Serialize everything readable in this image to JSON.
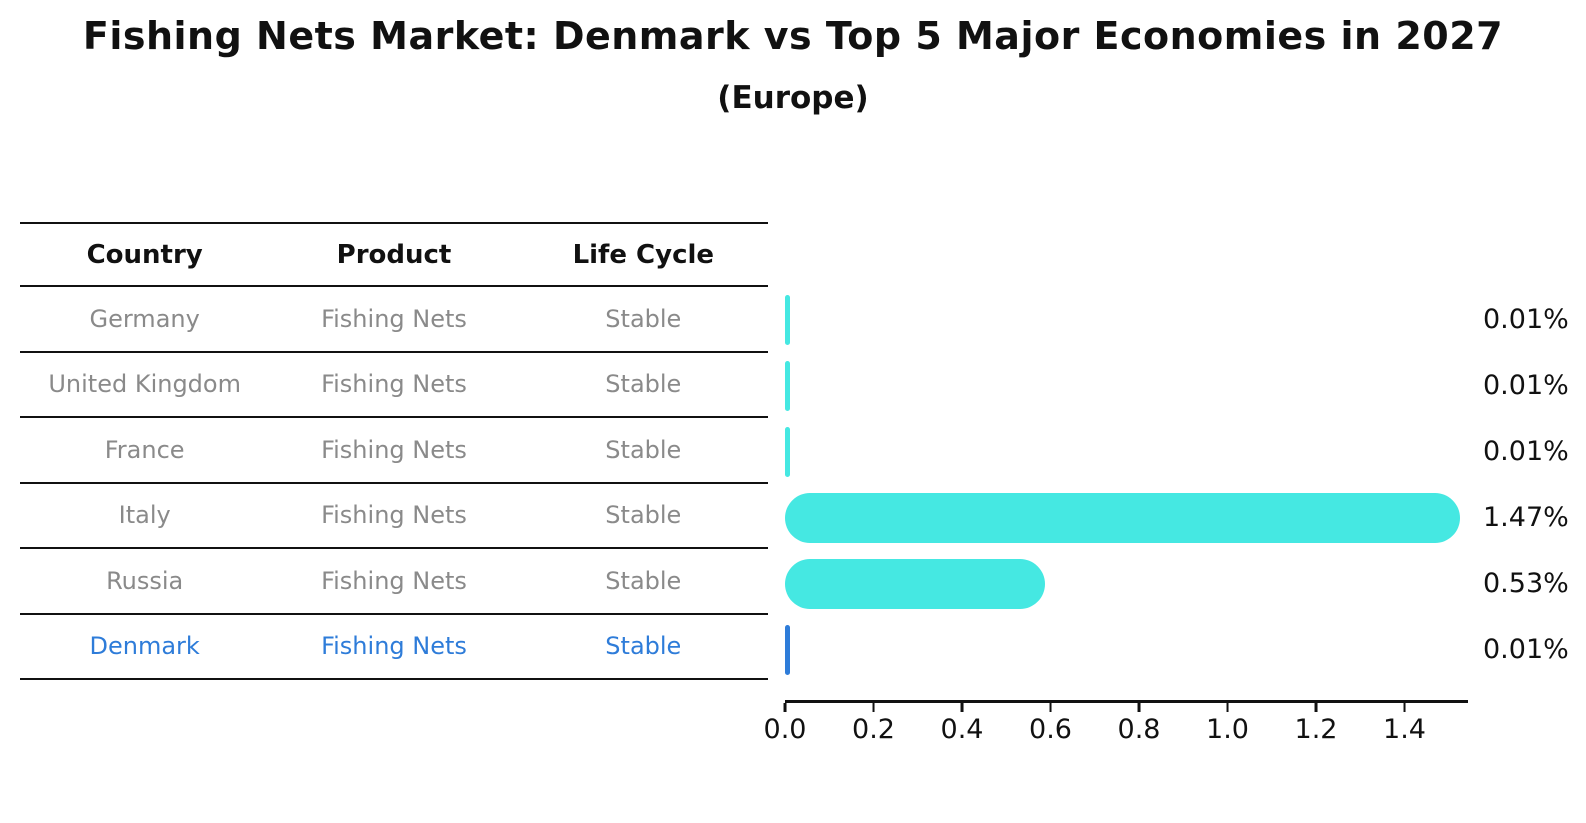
{
  "table": {
    "headers": [
      "Country",
      "Product",
      "Life Cycle"
    ],
    "rows": [
      {
        "country": "Germany",
        "product": "Fishing Nets",
        "life_cycle": "Stable",
        "highlighted": false
      },
      {
        "country": "United Kingdom",
        "product": "Fishing Nets",
        "life_cycle": "Stable",
        "highlighted": false
      },
      {
        "country": "France",
        "product": "Fishing Nets",
        "life_cycle": "Stable",
        "highlighted": false
      },
      {
        "country": "Italy",
        "product": "Fishing Nets",
        "life_cycle": "Stable",
        "highlighted": false
      },
      {
        "country": "Russia",
        "product": "Fishing Nets",
        "life_cycle": "Stable",
        "highlighted": false
      },
      {
        "country": "Denmark",
        "product": "Fishing Nets",
        "life_cycle": "Stable",
        "highlighted": true
      }
    ]
  },
  "chart_data": {
    "type": "bar",
    "orientation": "horizontal",
    "title": "Fishing Nets Market: Denmark vs Top 5 Major Economies in 2027",
    "subtitle": "(Europe)",
    "categories": [
      "Germany",
      "United Kingdom",
      "France",
      "Italy",
      "Russia",
      "Denmark"
    ],
    "values": [
      0.01,
      0.01,
      0.01,
      1.47,
      0.53,
      0.01
    ],
    "value_labels": [
      "0.01%",
      "0.01%",
      "0.01%",
      "1.47%",
      "0.53%",
      "0.01%"
    ],
    "xticks": [
      "0.0",
      "0.2",
      "0.4",
      "0.6",
      "0.8",
      "1.0",
      "1.2",
      "1.4"
    ],
    "xlim": [
      0,
      1.5435
    ],
    "grid": false,
    "legend": false,
    "bar_color": "#45e8e2",
    "highlight_color": "#2e7cd9",
    "highlight_index": 5,
    "muted_text_color": "#8a8a8a",
    "axis_color": "#111111"
  }
}
